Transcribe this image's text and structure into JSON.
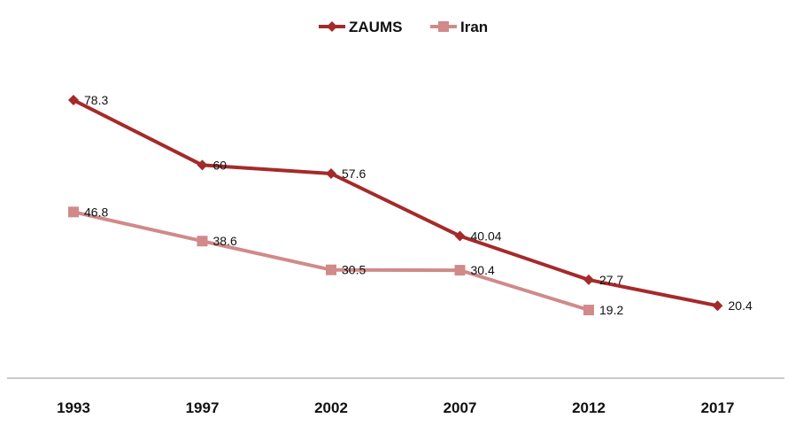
{
  "chart_data": {
    "type": "line",
    "title": "",
    "xlabel": "",
    "ylabel": "",
    "categories": [
      "1993",
      "1997",
      "2002",
      "2007",
      "2012",
      "2017"
    ],
    "ylim": [
      0,
      100
    ],
    "grid": false,
    "legend_position": "top-center",
    "series": [
      {
        "name": "ZAUMS",
        "color": "#A52A2A",
        "marker": "diamond",
        "values": [
          78.3,
          60,
          57.6,
          40.04,
          27.7,
          20.4
        ],
        "labels": [
          "78.3",
          "60",
          "57.6",
          "40.04",
          "27.7",
          "20.4"
        ]
      },
      {
        "name": "Iran",
        "color": "#D08A8A",
        "marker": "square",
        "values": [
          46.8,
          38.6,
          30.5,
          30.4,
          19.2,
          null
        ],
        "labels": [
          "46.8",
          "38.6",
          "30.5",
          "30.4",
          "19.2",
          null
        ]
      }
    ]
  }
}
